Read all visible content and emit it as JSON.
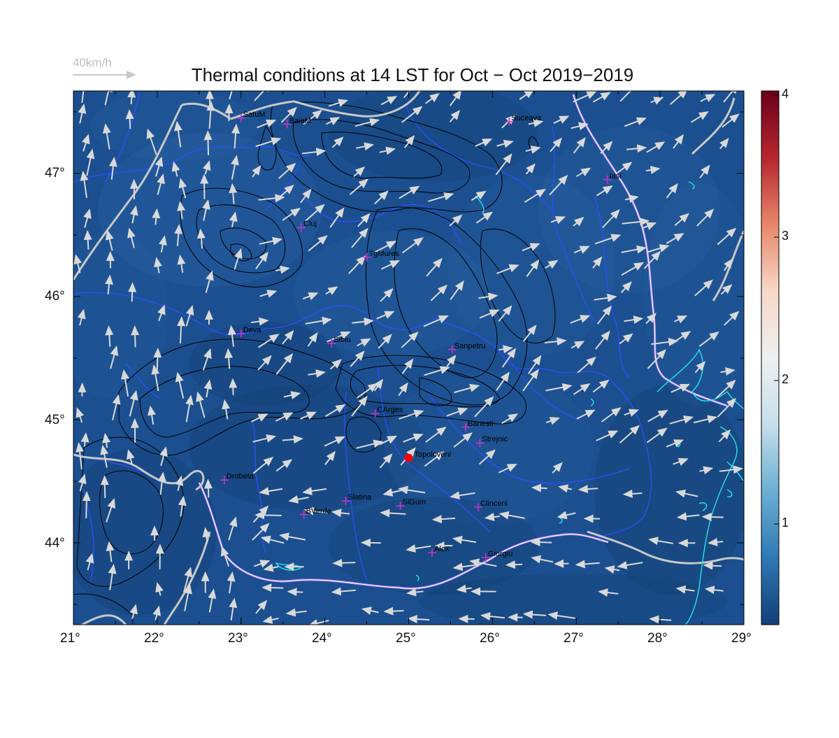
{
  "title": "Thermal conditions at 14 LST for Oct − Oct  2019−2019",
  "wind_scale": {
    "label": "40km/h"
  },
  "axes": {
    "x_ticks": [
      "21°",
      "22°",
      "23°",
      "24°",
      "25°",
      "26°",
      "27°",
      "28°",
      "29°"
    ],
    "y_ticks": [
      "47°",
      "46°",
      "45°",
      "44°"
    ]
  },
  "colorbar": {
    "ticks": [
      "4",
      "3",
      "2",
      "1"
    ],
    "colors": [
      "#6b0019",
      "#b6262e",
      "#e7876a",
      "#f7d8c7",
      "#eef0f1",
      "#c6dfec",
      "#6bafd2",
      "#2f78b4",
      "#123f78"
    ]
  },
  "field_colors": {
    "base": "#1b4f8f",
    "light": "#2c64a5",
    "dark": "#14406f"
  },
  "stations": [
    {
      "name": "SatuM",
      "lon": 23.0,
      "lat": 47.45
    },
    {
      "name": "BaiaM",
      "lon": 23.55,
      "lat": 47.4
    },
    {
      "name": "Suceava",
      "lon": 26.2,
      "lat": 47.42
    },
    {
      "name": "Iasi",
      "lon": 27.37,
      "lat": 46.95
    },
    {
      "name": "Cluj",
      "lon": 23.72,
      "lat": 46.56
    },
    {
      "name": "TgMures",
      "lon": 24.5,
      "lat": 46.32
    },
    {
      "name": "Deva",
      "lon": 23.0,
      "lat": 45.7
    },
    {
      "name": "Sibiu",
      "lon": 24.08,
      "lat": 45.62
    },
    {
      "name": "Sanpetru",
      "lon": 25.52,
      "lat": 45.57
    },
    {
      "name": "CArges",
      "lon": 24.6,
      "lat": 45.05
    },
    {
      "name": "Banesti",
      "lon": 25.68,
      "lat": 44.94
    },
    {
      "name": "Strejnic",
      "lon": 25.85,
      "lat": 44.81
    },
    {
      "name": "Drobeta",
      "lon": 22.8,
      "lat": 44.51
    },
    {
      "name": "Slatina",
      "lon": 24.25,
      "lat": 44.34
    },
    {
      "name": "SlGum",
      "lon": 24.9,
      "lat": 44.3
    },
    {
      "name": "Clinceni",
      "lon": 25.83,
      "lat": 44.29
    },
    {
      "name": "BVerde",
      "lon": 23.75,
      "lat": 44.23
    },
    {
      "name": "Alex",
      "lon": 25.28,
      "lat": 43.92
    },
    {
      "name": "Giurgiu",
      "lon": 25.92,
      "lat": 43.88
    }
  ],
  "highlight_station": {
    "name": "Topoloveni",
    "lon": 25.0,
    "lat": 44.69,
    "color": "#ff0000"
  }
}
